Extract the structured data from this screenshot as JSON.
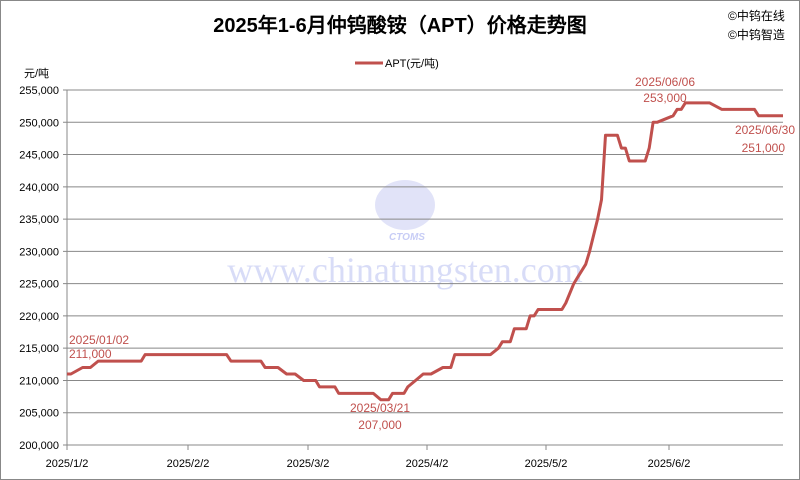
{
  "copyright": [
    "©中钨在线",
    "©中钨智造"
  ],
  "watermark": {
    "logo_text": "CTOMS",
    "url_text": "www.chinatungsten.com"
  },
  "chart_data": {
    "type": "line",
    "title": "2025年1-6月仲钨酸铵（APT）价格走势图",
    "ylabel": "元/吨",
    "xlabel": "",
    "ylim": [
      200000,
      255000
    ],
    "yticks": [
      "200,000",
      "205,000",
      "210,000",
      "215,000",
      "220,000",
      "225,000",
      "230,000",
      "235,000",
      "240,000",
      "245,000",
      "250,000",
      "255,000"
    ],
    "xticks": [
      "2025/1/2",
      "2025/2/2",
      "2025/3/2",
      "2025/4/2",
      "2025/5/2",
      "2025/6/2"
    ],
    "grid": true,
    "legend": "top-center",
    "series_color": "#C0504D",
    "series": [
      {
        "name": "APT(元/吨)",
        "points": [
          [
            "2025-01-02",
            211000
          ],
          [
            "2025-01-03",
            211000
          ],
          [
            "2025-01-06",
            212000
          ],
          [
            "2025-01-08",
            212000
          ],
          [
            "2025-01-10",
            213000
          ],
          [
            "2025-01-21",
            213000
          ],
          [
            "2025-01-22",
            214000
          ],
          [
            "2025-02-11",
            214000
          ],
          [
            "2025-02-12",
            213000
          ],
          [
            "2025-02-19",
            213000
          ],
          [
            "2025-02-20",
            212000
          ],
          [
            "2025-02-23",
            212000
          ],
          [
            "2025-02-25",
            211000
          ],
          [
            "2025-02-27",
            211000
          ],
          [
            "2025-03-01",
            210000
          ],
          [
            "2025-03-04",
            210000
          ],
          [
            "2025-03-05",
            209000
          ],
          [
            "2025-03-09",
            209000
          ],
          [
            "2025-03-10",
            208000
          ],
          [
            "2025-03-19",
            208000
          ],
          [
            "2025-03-21",
            207000
          ],
          [
            "2025-03-23",
            207000
          ],
          [
            "2025-03-24",
            208000
          ],
          [
            "2025-03-27",
            208000
          ],
          [
            "2025-03-28",
            209000
          ],
          [
            "2025-03-30",
            210000
          ],
          [
            "2025-04-01",
            211000
          ],
          [
            "2025-04-03",
            211000
          ],
          [
            "2025-04-06",
            212000
          ],
          [
            "2025-04-08",
            212000
          ],
          [
            "2025-04-09",
            214000
          ],
          [
            "2025-04-18",
            214000
          ],
          [
            "2025-04-20",
            215000
          ],
          [
            "2025-04-21",
            216000
          ],
          [
            "2025-04-23",
            216000
          ],
          [
            "2025-04-24",
            218000
          ],
          [
            "2025-04-27",
            218000
          ],
          [
            "2025-04-28",
            220000
          ],
          [
            "2025-04-29",
            220000
          ],
          [
            "2025-04-30",
            221000
          ],
          [
            "2025-05-06",
            221000
          ],
          [
            "2025-05-07",
            222000
          ],
          [
            "2025-05-09",
            225000
          ],
          [
            "2025-05-10",
            226000
          ],
          [
            "2025-05-12",
            228000
          ],
          [
            "2025-05-13",
            230000
          ],
          [
            "2025-05-15",
            235000
          ],
          [
            "2025-05-16",
            238000
          ],
          [
            "2025-05-17",
            248000
          ],
          [
            "2025-05-20",
            248000
          ],
          [
            "2025-05-21",
            246000
          ],
          [
            "2025-05-22",
            246000
          ],
          [
            "2025-05-23",
            244000
          ],
          [
            "2025-05-27",
            244000
          ],
          [
            "2025-05-28",
            246000
          ],
          [
            "2025-05-29",
            250000
          ],
          [
            "2025-05-30",
            250000
          ],
          [
            "2025-06-03",
            251000
          ],
          [
            "2025-06-04",
            252000
          ],
          [
            "2025-06-05",
            252000
          ],
          [
            "2025-06-06",
            253000
          ],
          [
            "2025-06-12",
            253000
          ],
          [
            "2025-06-15",
            252000
          ],
          [
            "2025-06-23",
            252000
          ],
          [
            "2025-06-24",
            251000
          ],
          [
            "2025-06-30",
            251000
          ]
        ]
      }
    ],
    "annotations": [
      {
        "date": "2025/01/02",
        "value": "211,000"
      },
      {
        "date": "2025/03/21",
        "value": "207,000"
      },
      {
        "date": "2025/06/06",
        "value": "253,000"
      },
      {
        "date": "2025/06/30",
        "value": "251,000"
      }
    ]
  }
}
